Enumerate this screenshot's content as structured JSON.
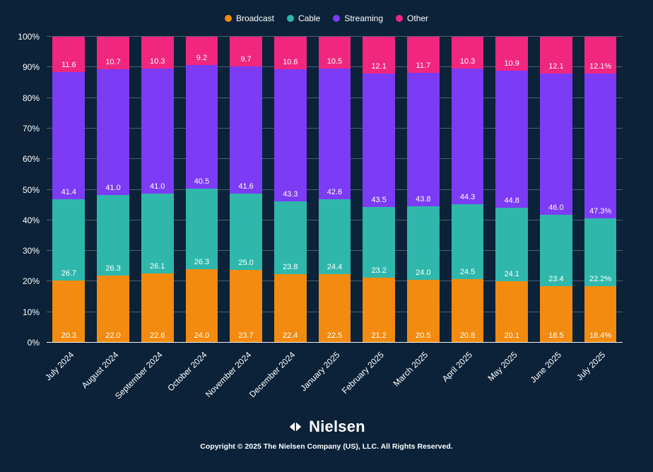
{
  "colors": {
    "background": "#0b2239",
    "text": "#ffffff",
    "broadcast": "#F28B0F",
    "cable": "#2FB7AC",
    "streaming": "#7C3BF4",
    "other": "#F0267F"
  },
  "chart_data": {
    "type": "bar",
    "stacked": true,
    "legend_position": "top",
    "grid": true,
    "ylim": [
      0,
      100
    ],
    "xlabel": "",
    "ylabel": "",
    "y_ticks": [
      "0%",
      "10%",
      "20%",
      "30%",
      "40%",
      "50%",
      "60%",
      "70%",
      "80%",
      "90%",
      "100%"
    ],
    "categories": [
      "July 2024",
      "August 2024",
      "September 2024",
      "October 2024",
      "November 2024",
      "December 2024",
      "January 2025",
      "February 2025",
      "March 2025",
      "April 2025",
      "May 2025",
      "June 2025",
      "July 2025"
    ],
    "series": [
      {
        "name": "Broadcast",
        "color": "#F28B0F",
        "values": [
          20.3,
          22.0,
          22.6,
          24.0,
          23.7,
          22.4,
          22.5,
          21.2,
          20.5,
          20.8,
          20.1,
          18.5,
          18.4
        ],
        "labels": [
          "20.3",
          "22.0",
          "22.6",
          "24.0",
          "23.7",
          "22.4",
          "22.5",
          "21.2",
          "20.5",
          "20.8",
          "20.1",
          "18.5",
          "18.4%"
        ]
      },
      {
        "name": "Cable",
        "color": "#2FB7AC",
        "values": [
          26.7,
          26.3,
          26.1,
          26.3,
          25.0,
          23.8,
          24.4,
          23.2,
          24.0,
          24.5,
          24.1,
          23.4,
          22.2
        ],
        "labels": [
          "26.7",
          "26.3",
          "26.1",
          "26.3",
          "25.0",
          "23.8",
          "24.4",
          "23.2",
          "24.0",
          "24.5",
          "24.1",
          "23.4",
          "22.2%"
        ]
      },
      {
        "name": "Streaming",
        "color": "#7C3BF4",
        "values": [
          41.4,
          41.0,
          41.0,
          40.5,
          41.6,
          43.3,
          42.6,
          43.5,
          43.8,
          44.3,
          44.8,
          46.0,
          47.3
        ],
        "labels": [
          "41.4",
          "41.0",
          "41.0",
          "40.5",
          "41.6",
          "43.3",
          "42.6",
          "43.5",
          "43.8",
          "44.3",
          "44.8",
          "46.0",
          "47.3%"
        ]
      },
      {
        "name": "Other",
        "color": "#F0267F",
        "values": [
          11.6,
          10.7,
          10.3,
          9.2,
          9.7,
          10.6,
          10.5,
          12.1,
          11.7,
          10.3,
          10.9,
          12.1,
          12.1
        ],
        "labels": [
          "11.6",
          "10.7",
          "10.3",
          "9.2",
          "9.7",
          "10.6",
          "10.5",
          "12.1",
          "11.7",
          "10.3",
          "10.9",
          "12.1",
          "12.1%"
        ]
      }
    ]
  },
  "footer": {
    "brand": "Nielsen",
    "copyright": "Copyright © 2025 The Nielsen Company (US), LLC. All Rights Reserved."
  }
}
